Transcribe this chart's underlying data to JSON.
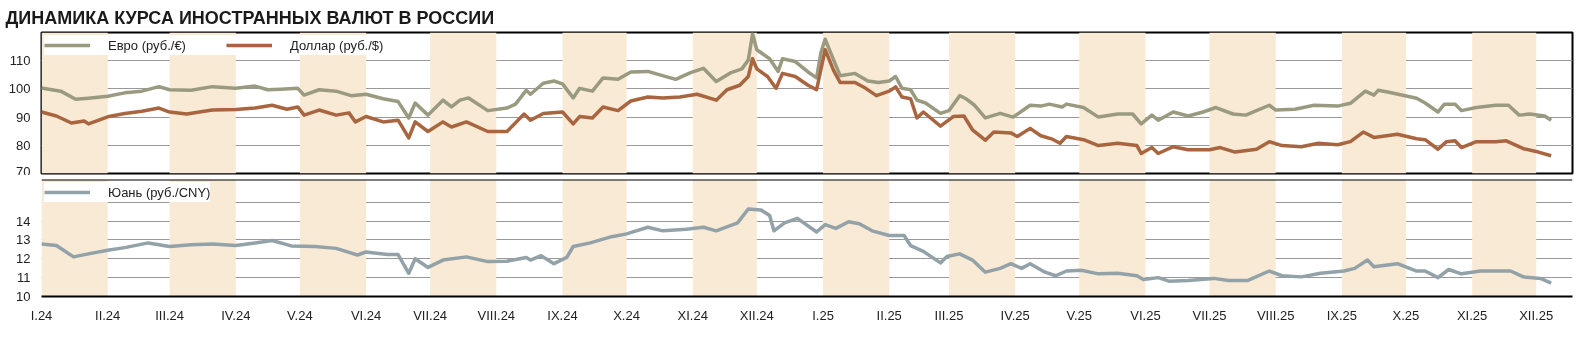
{
  "chart_data": [
    {
      "type": "line",
      "title": "ДИНАМИКА КУРСА ИНОСТРАННЫХ ВАЛЮТ В РОССИИ",
      "xlim": [
        "2024-01-01",
        "2025-12-18"
      ],
      "ylim": [
        70,
        120
      ],
      "yticks": [
        70,
        80,
        90,
        100,
        110
      ],
      "grid": "y",
      "legend": "top left",
      "tick_labels": "y",
      "bands": [
        {
          "axis": "x",
          "from": "2024-01-01",
          "to": "2024-02-01",
          "color": "#f8ead5"
        },
        {
          "axis": "x",
          "from": "2024-03-01",
          "to": "2024-04-01",
          "color": "#f8ead5"
        },
        {
          "axis": "x",
          "from": "2024-05-01",
          "to": "2024-06-01",
          "color": "#f8ead5"
        },
        {
          "axis": "x",
          "from": "2024-07-01",
          "to": "2024-08-01",
          "color": "#f8ead5"
        },
        {
          "axis": "x",
          "from": "2024-09-01",
          "to": "2024-10-01",
          "color": "#f8ead5"
        },
        {
          "axis": "x",
          "from": "2024-11-01",
          "to": "2024-12-01",
          "color": "#f8ead5"
        },
        {
          "axis": "x",
          "from": "2025-01-01",
          "to": "2025-02-01",
          "color": "#f8ead5"
        },
        {
          "axis": "x",
          "from": "2025-03-01",
          "to": "2025-04-01",
          "color": "#f8ead5"
        },
        {
          "axis": "x",
          "from": "2025-05-01",
          "to": "2025-06-01",
          "color": "#f8ead5"
        },
        {
          "axis": "x",
          "from": "2025-07-01",
          "to": "2025-08-01",
          "color": "#f8ead5"
        },
        {
          "axis": "x",
          "from": "2025-09-01",
          "to": "2025-10-01",
          "color": "#f8ead5"
        },
        {
          "axis": "x",
          "from": "2025-11-01",
          "to": "2025-12-01",
          "color": "#f8ead5"
        }
      ],
      "series": [
        {
          "name": "Евро (руб./€)",
          "color": "#9a9a80",
          "x": [
            "2024-01-01",
            "2024-01-10",
            "2024-01-17",
            "2024-01-23",
            "2024-02-01",
            "2024-02-09",
            "2024-02-17",
            "2024-02-25",
            "2024-03-01",
            "2024-03-11",
            "2024-03-21",
            "2024-04-01",
            "2024-04-10",
            "2024-04-16",
            "2024-04-22",
            "2024-04-30",
            "2024-05-03",
            "2024-05-10",
            "2024-05-18",
            "2024-05-25",
            "2024-06-01",
            "2024-06-09",
            "2024-06-16",
            "2024-06-21",
            "2024-06-24",
            "2024-06-30",
            "2024-07-07",
            "2024-07-11",
            "2024-07-15",
            "2024-07-19",
            "2024-07-28",
            "2024-08-06",
            "2024-08-10",
            "2024-08-15",
            "2024-08-17",
            "2024-08-23",
            "2024-08-28",
            "2024-09-01",
            "2024-09-06",
            "2024-09-09",
            "2024-09-15",
            "2024-09-20",
            "2024-09-27",
            "2024-10-03",
            "2024-10-11",
            "2024-10-17",
            "2024-10-24",
            "2024-10-31",
            "2024-11-06",
            "2024-11-12",
            "2024-11-19",
            "2024-11-24",
            "2024-11-27",
            "2024-11-29",
            "2024-12-01",
            "2024-12-07",
            "2024-12-11",
            "2024-12-13",
            "2024-12-19",
            "2024-12-25",
            "2024-12-29",
            "2024-12-31",
            "2025-01-02",
            "2025-01-06",
            "2025-01-09",
            "2025-01-16",
            "2025-01-22",
            "2025-01-27",
            "2025-02-01",
            "2025-02-04",
            "2025-02-07",
            "2025-02-11",
            "2025-02-14",
            "2025-02-18",
            "2025-02-25",
            "2025-03-01",
            "2025-03-06",
            "2025-03-09",
            "2025-03-13",
            "2025-03-18",
            "2025-03-25",
            "2025-03-31",
            "2025-04-08",
            "2025-04-13",
            "2025-04-17",
            "2025-04-23",
            "2025-04-25",
            "2025-05-03",
            "2025-05-10",
            "2025-05-19",
            "2025-05-26",
            "2025-05-30",
            "2025-06-04",
            "2025-06-07",
            "2025-06-14",
            "2025-06-21",
            "2025-06-28",
            "2025-07-04",
            "2025-07-12",
            "2025-07-18",
            "2025-07-29",
            "2025-08-01",
            "2025-08-10",
            "2025-08-19",
            "2025-08-30",
            "2025-09-05",
            "2025-09-12",
            "2025-09-16",
            "2025-09-18",
            "2025-09-23",
            "2025-10-06",
            "2025-10-10",
            "2025-10-16",
            "2025-10-19",
            "2025-10-24",
            "2025-10-27",
            "2025-11-03",
            "2025-11-12",
            "2025-11-18",
            "2025-11-23",
            "2025-11-28",
            "2025-12-05",
            "2025-12-08"
          ],
          "values": [
            100.3,
            99.2,
            96.3,
            96.7,
            97.4,
            98.6,
            99.2,
            100.8,
            99.7,
            99.5,
            100.8,
            100.2,
            101,
            99.7,
            99.9,
            100.2,
            97.8,
            99.7,
            99.2,
            97.6,
            98.1,
            96.5,
            95.5,
            89.7,
            95,
            90.7,
            96,
            93.6,
            96,
            96.8,
            92.3,
            93.2,
            94.6,
            99.5,
            98.1,
            102,
            102.8,
            101.8,
            96.8,
            100.2,
            99.2,
            103.9,
            103.4,
            106,
            106.2,
            104.9,
            103.4,
            105.8,
            107.3,
            102.6,
            105.8,
            107.1,
            110.2,
            119.5,
            113.9,
            110.7,
            106.2,
            110.7,
            109.7,
            106,
            103.9,
            112.8,
            117.6,
            110.2,
            104.7,
            105.5,
            102.8,
            102.3,
            102.8,
            104.4,
            100.2,
            99.7,
            96,
            95,
            91.3,
            92.3,
            97.6,
            96.5,
            94.2,
            89.7,
            91.3,
            90,
            94.2,
            93.9,
            94.6,
            93.6,
            94.6,
            93.4,
            90,
            91.1,
            91.1,
            87.6,
            90.7,
            88.9,
            91.8,
            90.4,
            91.8,
            93.4,
            91.1,
            90.7,
            94.2,
            92.5,
            92.8,
            94.2,
            93.9,
            94.9,
            99.2,
            97.8,
            99.5,
            98.8,
            96.7,
            95,
            91.8,
            94.6,
            94.6,
            92.3,
            93.4,
            94.2,
            94.2,
            90.7,
            91.1,
            90.4,
            88.9
          ]
        },
        {
          "name": "Доллар (руб./$)",
          "color": "#a8653f",
          "x": [
            "2024-01-01",
            "2024-01-08",
            "2024-01-15",
            "2024-01-21",
            "2024-01-23",
            "2024-02-01",
            "2024-02-09",
            "2024-02-17",
            "2024-02-25",
            "2024-03-01",
            "2024-03-09",
            "2024-03-21",
            "2024-04-01",
            "2024-04-10",
            "2024-04-18",
            "2024-04-25",
            "2024-04-30",
            "2024-05-03",
            "2024-05-10",
            "2024-05-18",
            "2024-05-24",
            "2024-05-27",
            "2024-06-01",
            "2024-06-09",
            "2024-06-16",
            "2024-06-21",
            "2024-06-24",
            "2024-06-30",
            "2024-07-07",
            "2024-07-11",
            "2024-07-18",
            "2024-07-28",
            "2024-08-06",
            "2024-08-14",
            "2024-08-17",
            "2024-08-23",
            "2024-09-01",
            "2024-09-06",
            "2024-09-09",
            "2024-09-15",
            "2024-09-20",
            "2024-09-27",
            "2024-10-03",
            "2024-10-11",
            "2024-10-18",
            "2024-10-26",
            "2024-11-03",
            "2024-11-12",
            "2024-11-17",
            "2024-11-23",
            "2024-11-27",
            "2024-11-29",
            "2024-12-01",
            "2024-12-06",
            "2024-12-10",
            "2024-12-13",
            "2024-12-19",
            "2024-12-25",
            "2024-12-29",
            "2025-01-02",
            "2025-01-06",
            "2025-01-09",
            "2025-01-16",
            "2025-01-21",
            "2025-01-26",
            "2025-02-01",
            "2025-02-04",
            "2025-02-07",
            "2025-02-11",
            "2025-02-14",
            "2025-02-17",
            "2025-02-25",
            "2025-03-03",
            "2025-03-08",
            "2025-03-12",
            "2025-03-18",
            "2025-03-22",
            "2025-03-30",
            "2025-04-02",
            "2025-04-08",
            "2025-04-13",
            "2025-04-18",
            "2025-04-22",
            "2025-04-25",
            "2025-05-03",
            "2025-05-10",
            "2025-05-19",
            "2025-05-28",
            "2025-05-30",
            "2025-06-04",
            "2025-06-07",
            "2025-06-14",
            "2025-06-21",
            "2025-07-01",
            "2025-07-06",
            "2025-07-13",
            "2025-07-23",
            "2025-07-29",
            "2025-08-04",
            "2025-08-13",
            "2025-08-21",
            "2025-08-30",
            "2025-09-05",
            "2025-09-11",
            "2025-09-16",
            "2025-09-27",
            "2025-10-06",
            "2025-10-10",
            "2025-10-16",
            "2025-10-20",
            "2025-10-24",
            "2025-10-27",
            "2025-11-03",
            "2025-11-12",
            "2025-11-17",
            "2025-11-25",
            "2025-12-02",
            "2025-12-08"
          ],
          "values": [
            91.8,
            90.4,
            87.9,
            88.6,
            87.6,
            90.1,
            91.3,
            92.1,
            93.2,
            91.8,
            91.1,
            92.5,
            92.7,
            93.2,
            94.2,
            92.8,
            93.6,
            90.7,
            92.5,
            90.7,
            91.5,
            88.3,
            90.2,
            88.3,
            88.9,
            82.6,
            88.3,
            84.9,
            88.3,
            86.5,
            88.3,
            84.9,
            84.9,
            91.1,
            88.9,
            91.3,
            91.8,
            87.6,
            90.2,
            89.7,
            93.6,
            92.3,
            95.7,
            97.1,
            96.8,
            97.1,
            98.1,
            96,
            99.7,
            101.3,
            104.4,
            110.7,
            107.1,
            104.4,
            100.2,
            105.5,
            104.4,
            101.3,
            99.7,
            113.9,
            106.5,
            102.3,
            102.3,
            100.2,
            97.6,
            99.2,
            100.7,
            97.1,
            96.5,
            89.7,
            91.8,
            86.8,
            90.2,
            90.4,
            85.5,
            81.8,
            84.7,
            84.4,
            83.1,
            86,
            83.4,
            82.3,
            80.7,
            83.1,
            82,
            79.9,
            80.7,
            79.9,
            77.1,
            79.2,
            77.1,
            79.5,
            78.4,
            78.4,
            79.2,
            77.6,
            78.6,
            81.3,
            79.9,
            79.5,
            80.7,
            80.2,
            81.3,
            84.7,
            82.8,
            83.9,
            82.3,
            82,
            78.6,
            81.3,
            81.6,
            79.2,
            81.3,
            81.3,
            81.6,
            78.8,
            77.6,
            76.3
          ]
        }
      ]
    },
    {
      "type": "line",
      "xlim": [
        "2024-01-01",
        "2025-12-18"
      ],
      "xticks": [
        {
          "value": "2024-01-01",
          "label": "I.24"
        },
        {
          "value": "2024-02-01",
          "label": "II.24"
        },
        {
          "value": "2024-03-01",
          "label": "III.24"
        },
        {
          "value": "2024-04-01",
          "label": "IV.24"
        },
        {
          "value": "2024-05-01",
          "label": "V.24"
        },
        {
          "value": "2024-06-01",
          "label": "VI.24"
        },
        {
          "value": "2024-07-01",
          "label": "VII.24"
        },
        {
          "value": "2024-08-01",
          "label": "VIII.24"
        },
        {
          "value": "2024-09-01",
          "label": "IX.24"
        },
        {
          "value": "2024-10-01",
          "label": "X.24"
        },
        {
          "value": "2024-11-01",
          "label": "XI.24"
        },
        {
          "value": "2024-12-01",
          "label": "XII.24"
        },
        {
          "value": "2025-01-01",
          "label": "I.25"
        },
        {
          "value": "2025-02-01",
          "label": "II.25"
        },
        {
          "value": "2025-03-01",
          "label": "III.25"
        },
        {
          "value": "2025-04-01",
          "label": "IV.25"
        },
        {
          "value": "2025-05-01",
          "label": "V.25"
        },
        {
          "value": "2025-06-01",
          "label": "VI.25"
        },
        {
          "value": "2025-07-01",
          "label": "VII.25"
        },
        {
          "value": "2025-08-01",
          "label": "VIII.25"
        },
        {
          "value": "2025-09-01",
          "label": "IX.25"
        },
        {
          "value": "2025-10-01",
          "label": "X.25"
        },
        {
          "value": "2025-11-01",
          "label": "XI.25"
        },
        {
          "value": "2025-12-01",
          "label": "XII.25"
        }
      ],
      "ylim": [
        10,
        16.2
      ],
      "yticks": [
        10,
        11,
        12,
        13,
        14,
        {
          "value": 15,
          "label": null
        }
      ],
      "grid": "y",
      "legend": "top left",
      "bands": [
        {
          "axis": "x",
          "from": "2024-01-01",
          "to": "2024-02-01",
          "color": "#f8ead5"
        },
        {
          "axis": "x",
          "from": "2024-03-01",
          "to": "2024-04-01",
          "color": "#f8ead5"
        },
        {
          "axis": "x",
          "from": "2024-05-01",
          "to": "2024-06-01",
          "color": "#f8ead5"
        },
        {
          "axis": "x",
          "from": "2024-07-01",
          "to": "2024-08-01",
          "color": "#f8ead5"
        },
        {
          "axis": "x",
          "from": "2024-09-01",
          "to": "2024-10-01",
          "color": "#f8ead5"
        },
        {
          "axis": "x",
          "from": "2024-11-01",
          "to": "2024-12-01",
          "color": "#f8ead5"
        },
        {
          "axis": "x",
          "from": "2025-01-01",
          "to": "2025-02-01",
          "color": "#f8ead5"
        },
        {
          "axis": "x",
          "from": "2025-03-01",
          "to": "2025-04-01",
          "color": "#f8ead5"
        },
        {
          "axis": "x",
          "from": "2025-05-01",
          "to": "2025-06-01",
          "color": "#f8ead5"
        },
        {
          "axis": "x",
          "from": "2025-07-01",
          "to": "2025-08-01",
          "color": "#f8ead5"
        },
        {
          "axis": "x",
          "from": "2025-09-01",
          "to": "2025-10-01",
          "color": "#f8ead5"
        },
        {
          "axis": "x",
          "from": "2025-11-01",
          "to": "2025-12-01",
          "color": "#f8ead5"
        }
      ],
      "series": [
        {
          "name": "Юань (руб./CNY)",
          "color": "#93a2a8",
          "x": [
            "2024-01-01",
            "2024-01-08",
            "2024-01-16",
            "2024-01-23",
            "2024-02-01",
            "2024-02-09",
            "2024-02-20",
            "2024-03-01",
            "2024-03-11",
            "2024-03-21",
            "2024-04-01",
            "2024-04-10",
            "2024-04-18",
            "2024-04-27",
            "2024-05-08",
            "2024-05-18",
            "2024-05-28",
            "2024-06-01",
            "2024-06-11",
            "2024-06-16",
            "2024-06-21",
            "2024-06-24",
            "2024-06-30",
            "2024-07-07",
            "2024-07-18",
            "2024-07-28",
            "2024-08-06",
            "2024-08-15",
            "2024-08-17",
            "2024-08-22",
            "2024-08-28",
            "2024-09-03",
            "2024-09-06",
            "2024-09-14",
            "2024-09-24",
            "2024-10-01",
            "2024-10-11",
            "2024-10-18",
            "2024-10-29",
            "2024-11-06",
            "2024-11-12",
            "2024-11-22",
            "2024-11-27",
            "2024-12-03",
            "2024-12-07",
            "2024-12-09",
            "2024-12-14",
            "2024-12-20",
            "2024-12-29",
            "2025-01-02",
            "2025-01-07",
            "2025-01-13",
            "2025-01-18",
            "2025-01-24",
            "2025-02-01",
            "2025-02-08",
            "2025-02-11",
            "2025-02-17",
            "2025-02-25",
            "2025-02-28",
            "2025-03-06",
            "2025-03-12",
            "2025-03-18",
            "2025-03-25",
            "2025-03-30",
            "2025-04-04",
            "2025-04-08",
            "2025-04-15",
            "2025-04-20",
            "2025-04-25",
            "2025-05-02",
            "2025-05-10",
            "2025-05-19",
            "2025-05-28",
            "2025-05-31",
            "2025-06-07",
            "2025-06-12",
            "2025-06-21",
            "2025-07-03",
            "2025-07-10",
            "2025-07-19",
            "2025-07-29",
            "2025-08-04",
            "2025-08-13",
            "2025-08-22",
            "2025-09-02",
            "2025-09-07",
            "2025-09-13",
            "2025-09-16",
            "2025-09-27",
            "2025-10-06",
            "2025-10-10",
            "2025-10-16",
            "2025-10-21",
            "2025-10-27",
            "2025-11-05",
            "2025-11-19",
            "2025-11-25",
            "2025-12-03",
            "2025-12-08"
          ],
          "values": [
            12.78,
            12.7,
            12.1,
            12.26,
            12.45,
            12.59,
            12.84,
            12.65,
            12.74,
            12.78,
            12.7,
            12.84,
            12.97,
            12.68,
            12.65,
            12.55,
            12.2,
            12.36,
            12.22,
            12.22,
            11.23,
            12.0,
            11.54,
            11.93,
            12.1,
            11.85,
            11.87,
            12.07,
            11.93,
            12.16,
            11.74,
            12.07,
            12.65,
            12.84,
            13.17,
            13.32,
            13.67,
            13.48,
            13.56,
            13.67,
            13.48,
            13.9,
            14.64,
            14.58,
            14.29,
            13.48,
            13.9,
            14.14,
            13.42,
            13.81,
            13.61,
            13.96,
            13.86,
            13.48,
            13.23,
            13.23,
            12.7,
            12.39,
            11.78,
            12.12,
            12.26,
            11.93,
            11.29,
            11.49,
            11.74,
            11.49,
            11.74,
            11.29,
            11.1,
            11.35,
            11.39,
            11.2,
            11.23,
            11.1,
            10.9,
            11.0,
            10.81,
            10.85,
            10.96,
            10.85,
            10.85,
            11.35,
            11.1,
            11.04,
            11.23,
            11.35,
            11.49,
            11.93,
            11.58,
            11.74,
            11.35,
            11.35,
            11.0,
            11.43,
            11.2,
            11.35,
            11.35,
            11.04,
            10.96,
            10.71
          ]
        }
      ]
    }
  ]
}
